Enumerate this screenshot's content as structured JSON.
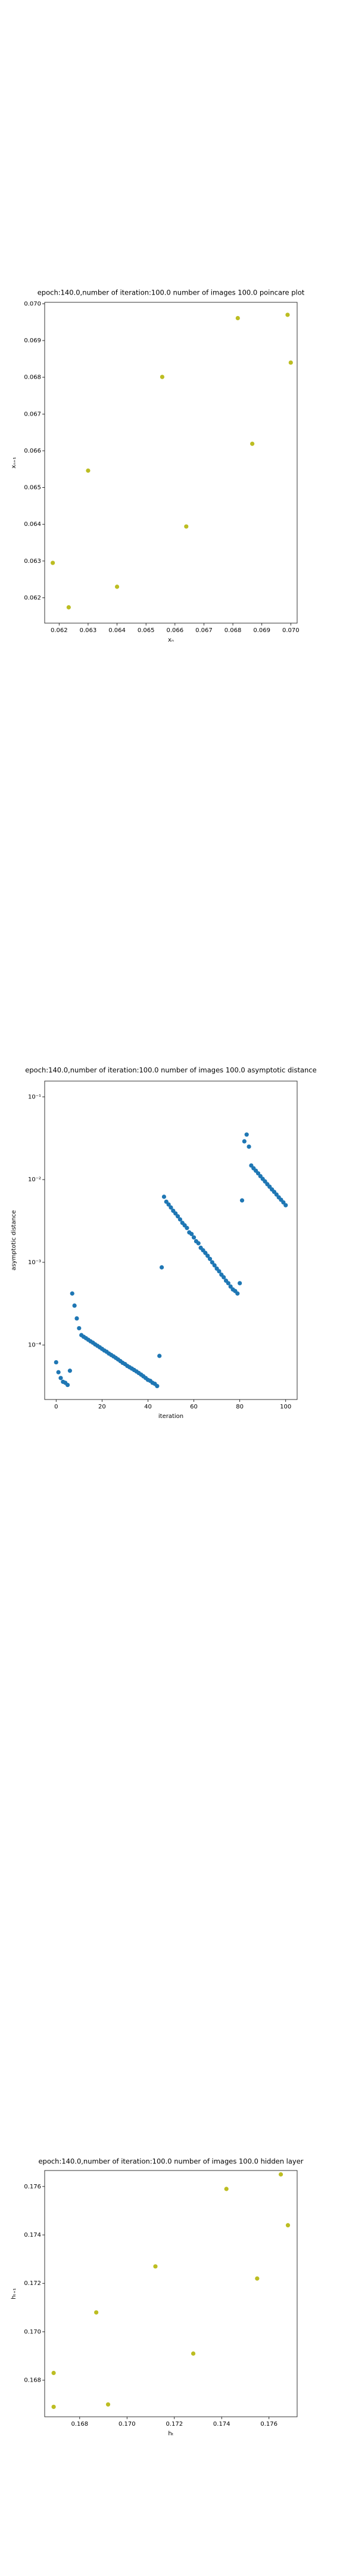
{
  "chart_data": [
    {
      "type": "scatter",
      "title": "epoch:140.0,number of iteration:100.0 number of images 100.0 poincare plot",
      "xlabel": "xₙ",
      "ylabel": "xₙ₊₁",
      "color": "#bcbd22",
      "x": [
        0.06178,
        0.06233,
        0.063,
        0.064,
        0.06556,
        0.06639,
        0.06817,
        0.06867,
        0.06989,
        0.07
      ],
      "values": [
        0.06295,
        0.06174,
        0.06546,
        0.0623,
        0.06801,
        0.06394,
        0.06961,
        0.06619,
        0.0697,
        0.0684
      ],
      "xlim": [
        0.0615,
        0.07022
      ],
      "ylim": [
        0.06131,
        0.07004
      ],
      "xticks": [
        0.062,
        0.063,
        0.064,
        0.065,
        0.066,
        0.067,
        0.068,
        0.069,
        {
          "value": 0.07,
          "label": "0.070"
        }
      ],
      "yticks": [
        0.062,
        0.063,
        0.064,
        0.065,
        0.066,
        0.067,
        0.068,
        0.069,
        {
          "value": 0.07,
          "label": "0.070"
        }
      ]
    },
    {
      "type": "scatter",
      "title": "epoch:140.0,number of iteration:100.0  number of images 100.0 asymptotic distance",
      "xlabel": "iteration",
      "ylabel": "asymptotic distance",
      "color": "#1f77b4",
      "yscale": "log",
      "x": [
        0,
        1,
        2,
        3,
        4,
        5,
        6,
        7,
        8,
        9,
        10,
        11,
        12,
        13,
        14,
        15,
        16,
        17,
        18,
        19,
        20,
        21,
        22,
        23,
        24,
        25,
        26,
        27,
        28,
        29,
        30,
        31,
        32,
        33,
        34,
        35,
        36,
        37,
        38,
        39,
        40,
        41,
        42,
        43,
        44,
        45,
        46,
        47,
        48,
        49,
        50,
        51,
        52,
        53,
        54,
        55,
        56,
        57,
        58,
        59,
        60,
        61,
        62,
        63,
        64,
        65,
        66,
        67,
        68,
        69,
        70,
        71,
        72,
        73,
        74,
        75,
        76,
        77,
        78,
        79,
        80,
        81,
        82,
        83,
        84,
        85,
        86,
        87,
        88,
        89,
        90,
        91,
        92,
        93,
        94,
        95,
        96,
        97,
        98,
        99,
        100
      ],
      "values": [
        6.2e-05,
        4.7e-05,
        4e-05,
        3.6e-05,
        3.5e-05,
        3.3e-05,
        4.9e-05,
        0.00042,
        0.0003,
        0.00021,
        0.00016,
        0.000132,
        0.000126,
        0.000121,
        0.000116,
        0.000111,
        0.000107,
        0.000102,
        9.8e-05,
        9.4e-05,
        9e-05,
        8.6e-05,
        8.3e-05,
        7.9e-05,
        7.6e-05,
        7.3e-05,
        7e-05,
        6.7e-05,
        6.4e-05,
        6.1e-05,
        5.9e-05,
        5.6e-05,
        5.4e-05,
        5.2e-05,
        5e-05,
        4.8e-05,
        4.6e-05,
        4.4e-05,
        4.2e-05,
        4e-05,
        3.8e-05,
        3.7e-05,
        3.5e-05,
        3.4e-05,
        3.2e-05,
        7.4e-05,
        0.00087,
        0.0062,
        0.0054,
        0.005,
        0.0046,
        0.0042,
        0.0039,
        0.0036,
        0.0033,
        0.003,
        0.0028,
        0.0026,
        0.0023,
        0.0022,
        0.002,
        0.0018,
        0.0017,
        0.0015,
        0.0014,
        0.0013,
        0.0012,
        0.0011,
        0.001,
        0.00092,
        0.00084,
        0.00078,
        0.00071,
        0.00066,
        0.0006,
        0.00056,
        0.00051,
        0.00047,
        0.00045,
        0.00042,
        0.00056,
        0.0056,
        0.029,
        0.035,
        0.025,
        0.0148,
        0.0137,
        0.0128,
        0.0119,
        0.011,
        0.0102,
        0.0095,
        0.0088,
        0.0082,
        0.0076,
        0.0071,
        0.0066,
        0.0061,
        0.0057,
        0.0053,
        0.0049
      ],
      "xlim": [
        -5,
        105
      ],
      "ylim": [
        2.2e-05,
        0.155
      ],
      "xticks": [
        0,
        20,
        40,
        60,
        80,
        100
      ],
      "yticks": [
        {
          "value": 0.0001,
          "label": "10⁻⁴"
        },
        {
          "value": 0.001,
          "label": "10⁻³"
        },
        {
          "value": 0.01,
          "label": "10⁻²"
        },
        {
          "value": 0.1,
          "label": "10⁻¹"
        }
      ]
    },
    {
      "type": "scatter",
      "title": "epoch:140.0,number of iteration:100.0  number of images 100.0 hidden layer",
      "xlabel": "hₜ",
      "ylabel": "hₜ₊₁",
      "color": "#bcbd22",
      "x": [
        0.1669,
        0.1669,
        0.1687,
        0.1692,
        0.1712,
        0.1728,
        0.1742,
        0.1755,
        0.1765,
        0.1768
      ],
      "values": [
        0.1683,
        0.1669,
        0.1708,
        0.167,
        0.1727,
        0.1691,
        0.1759,
        0.1722,
        0.1765,
        0.1744
      ],
      "xlim": [
        0.16652,
        0.17719
      ],
      "ylim": [
        0.16649,
        0.17666
      ],
      "xticks": [
        0.168,
        {
          "value": 0.17,
          "label": "0.170"
        },
        0.172,
        0.174,
        0.176
      ],
      "yticks": [
        0.168,
        {
          "value": 0.17,
          "label": "0.170"
        },
        0.172,
        0.174,
        0.176
      ]
    }
  ]
}
